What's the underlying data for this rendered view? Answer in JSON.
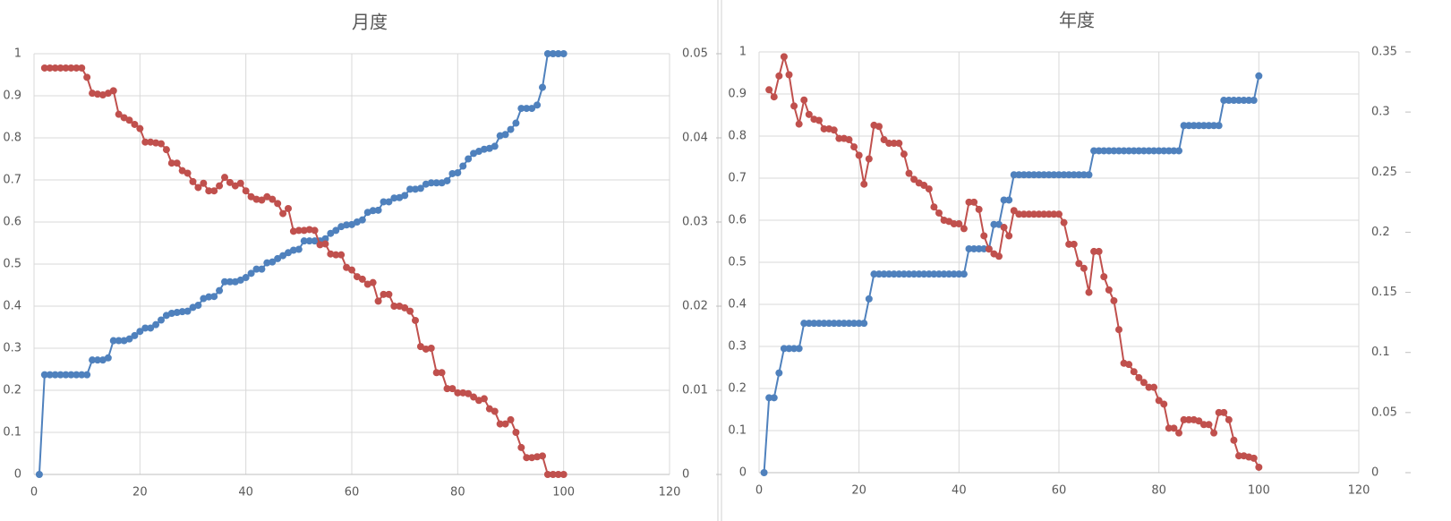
{
  "chart_data": [
    {
      "type": "line",
      "title": "月度",
      "x": [
        1,
        2,
        3,
        4,
        5,
        6,
        7,
        8,
        9,
        10,
        11,
        12,
        13,
        14,
        15,
        16,
        17,
        18,
        19,
        20,
        21,
        22,
        23,
        24,
        25,
        26,
        27,
        28,
        29,
        30,
        31,
        32,
        33,
        34,
        35,
        36,
        37,
        38,
        39,
        40,
        41,
        42,
        43,
        44,
        45,
        46,
        47,
        48,
        49,
        50,
        51,
        52,
        53,
        54,
        55,
        56,
        57,
        58,
        59,
        60,
        61,
        62,
        63,
        64,
        65,
        66,
        67,
        68,
        69,
        70,
        71,
        72,
        73,
        74,
        75,
        76,
        77,
        78,
        79,
        80,
        81,
        82,
        83,
        84,
        85,
        86,
        87,
        88,
        89,
        90,
        91,
        92,
        93,
        94,
        95,
        96,
        97,
        98,
        99,
        100
      ],
      "series": [
        {
          "color": "#4f81bd",
          "values": [
            0,
            0.237,
            0.237,
            0.237,
            0.237,
            0.237,
            0.237,
            0.237,
            0.237,
            0.237,
            0.272,
            0.272,
            0.272,
            0.277,
            0.318,
            0.318,
            0.318,
            0.322,
            0.33,
            0.34,
            0.348,
            0.348,
            0.356,
            0.367,
            0.378,
            0.383,
            0.385,
            0.387,
            0.388,
            0.397,
            0.402,
            0.418,
            0.422,
            0.423,
            0.437,
            0.458,
            0.458,
            0.458,
            0.462,
            0.468,
            0.478,
            0.488,
            0.488,
            0.503,
            0.505,
            0.513,
            0.52,
            0.527,
            0.533,
            0.535,
            0.555,
            0.555,
            0.555,
            0.555,
            0.56,
            0.573,
            0.58,
            0.589,
            0.593,
            0.594,
            0.6,
            0.605,
            0.623,
            0.627,
            0.628,
            0.648,
            0.648,
            0.657,
            0.658,
            0.663,
            0.678,
            0.678,
            0.68,
            0.69,
            0.693,
            0.693,
            0.693,
            0.698,
            0.715,
            0.717,
            0.733,
            0.75,
            0.763,
            0.768,
            0.773,
            0.775,
            0.78,
            0.805,
            0.808,
            0.82,
            0.835,
            0.87,
            0.87,
            0.87,
            0.878,
            0.92,
            1,
            1,
            1,
            1
          ]
        },
        {
          "color": "#c0504d",
          "axis": "y2",
          "values": [
            null,
            0.0483,
            0.0483,
            0.0483,
            0.0483,
            0.0483,
            0.0483,
            0.0483,
            0.0483,
            0.0472,
            0.0453,
            0.0452,
            0.0451,
            0.0453,
            0.0456,
            0.0428,
            0.0424,
            0.0421,
            0.0416,
            0.0411,
            0.0395,
            0.0395,
            0.0394,
            0.0393,
            0.0386,
            0.037,
            0.037,
            0.0361,
            0.0358,
            0.0348,
            0.0341,
            0.0346,
            0.0337,
            0.0337,
            0.0343,
            0.0353,
            0.0347,
            0.0343,
            0.0346,
            0.0337,
            0.033,
            0.0327,
            0.0326,
            0.033,
            0.0327,
            0.0322,
            0.031,
            0.0316,
            0.0289,
            0.029,
            0.029,
            0.0291,
            0.029,
            0.0273,
            0.0274,
            0.0262,
            0.0261,
            0.0261,
            0.0246,
            0.0243,
            0.0235,
            0.0232,
            0.0226,
            0.0228,
            0.0206,
            0.0214,
            0.0214,
            0.02,
            0.02,
            0.0198,
            0.0194,
            0.0183,
            0.0152,
            0.0149,
            0.015,
            0.0121,
            0.0121,
            0.0102,
            0.0102,
            0.0097,
            0.0097,
            0.0096,
            0.0092,
            0.0088,
            0.009,
            0.0078,
            0.0075,
            0.006,
            0.006,
            0.0065,
            0.005,
            0.0032,
            0.002,
            0.002,
            0.0021,
            0.0022,
            0,
            0,
            0,
            0
          ]
        }
      ],
      "xlim": [
        0,
        120
      ],
      "xticks": [
        0,
        20,
        40,
        60,
        80,
        100,
        120
      ],
      "ylim": [
        0,
        1
      ],
      "yticks": [
        0,
        0.1,
        0.2,
        0.3,
        0.4,
        0.5,
        0.6,
        0.7,
        0.8,
        0.9,
        1
      ],
      "y2lim": [
        0,
        0.05
      ],
      "y2ticks": [
        0,
        0.01,
        0.02,
        0.03,
        0.04,
        0.05
      ],
      "grid": true
    },
    {
      "type": "line",
      "title": "年度",
      "x": [
        1,
        2,
        3,
        4,
        5,
        6,
        7,
        8,
        9,
        10,
        11,
        12,
        13,
        14,
        15,
        16,
        17,
        18,
        19,
        20,
        21,
        22,
        23,
        24,
        25,
        26,
        27,
        28,
        29,
        30,
        31,
        32,
        33,
        34,
        35,
        36,
        37,
        38,
        39,
        40,
        41,
        42,
        43,
        44,
        45,
        46,
        47,
        48,
        49,
        50,
        51,
        52,
        53,
        54,
        55,
        56,
        57,
        58,
        59,
        60,
        61,
        62,
        63,
        64,
        65,
        66,
        67,
        68,
        69,
        70,
        71,
        72,
        73,
        74,
        75,
        76,
        77,
        78,
        79,
        80,
        81,
        82,
        83,
        84,
        85,
        86,
        87,
        88,
        89,
        90,
        91,
        92,
        93,
        94,
        95,
        96,
        97,
        98,
        99,
        100
      ],
      "series": [
        {
          "color": "#4f81bd",
          "values": [
            0,
            0.178,
            0.178,
            0.237,
            0.295,
            0.295,
            0.295,
            0.295,
            0.355,
            0.355,
            0.355,
            0.355,
            0.355,
            0.355,
            0.355,
            0.355,
            0.355,
            0.355,
            0.355,
            0.355,
            0.355,
            0.413,
            0.472,
            0.472,
            0.472,
            0.472,
            0.472,
            0.472,
            0.472,
            0.472,
            0.472,
            0.472,
            0.472,
            0.472,
            0.472,
            0.472,
            0.472,
            0.472,
            0.472,
            0.472,
            0.472,
            0.532,
            0.532,
            0.532,
            0.532,
            0.532,
            0.59,
            0.59,
            0.648,
            0.648,
            0.708,
            0.708,
            0.708,
            0.708,
            0.708,
            0.708,
            0.708,
            0.708,
            0.708,
            0.708,
            0.708,
            0.708,
            0.708,
            0.708,
            0.708,
            0.708,
            0.765,
            0.765,
            0.765,
            0.765,
            0.765,
            0.765,
            0.765,
            0.765,
            0.765,
            0.765,
            0.765,
            0.765,
            0.765,
            0.765,
            0.765,
            0.765,
            0.765,
            0.765,
            0.825,
            0.825,
            0.825,
            0.825,
            0.825,
            0.825,
            0.825,
            0.825,
            0.885,
            0.885,
            0.885,
            0.885,
            0.885,
            0.885,
            0.885,
            0.943
          ]
        },
        {
          "color": "#c0504d",
          "axis": "y2",
          "values": [
            null,
            0.3185,
            0.3126,
            0.33,
            0.346,
            0.331,
            0.305,
            0.29,
            0.31,
            0.298,
            0.294,
            0.293,
            0.286,
            0.286,
            0.285,
            0.278,
            0.278,
            0.277,
            0.271,
            0.264,
            0.24,
            0.261,
            0.289,
            0.288,
            0.277,
            0.274,
            0.274,
            0.274,
            0.265,
            0.249,
            0.244,
            0.241,
            0.239,
            0.236,
            0.221,
            0.216,
            0.21,
            0.209,
            0.207,
            0.207,
            0.203,
            0.225,
            0.225,
            0.219,
            0.197,
            0.186,
            0.182,
            0.18,
            0.204,
            0.197,
            0.218,
            0.215,
            0.215,
            0.215,
            0.215,
            0.215,
            0.215,
            0.215,
            0.215,
            0.215,
            0.208,
            0.19,
            0.19,
            0.174,
            0.17,
            0.15,
            0.184,
            0.184,
            0.163,
            0.152,
            0.143,
            0.119,
            0.091,
            0.09,
            0.084,
            0.079,
            0.075,
            0.071,
            0.071,
            0.06,
            0.057,
            0.037,
            0.037,
            0.033,
            0.044,
            0.044,
            0.044,
            0.043,
            0.04,
            0.04,
            0.033,
            0.05,
            0.05,
            0.044,
            0.027,
            0.014,
            0.014,
            0.013,
            0.012,
            0.0045
          ]
        }
      ],
      "xlim": [
        0,
        120
      ],
      "xticks": [
        0,
        20,
        40,
        60,
        80,
        100,
        120
      ],
      "ylim": [
        0,
        1
      ],
      "yticks": [
        0,
        0.1,
        0.2,
        0.3,
        0.4,
        0.5,
        0.6,
        0.7,
        0.8,
        0.9,
        1
      ],
      "y2lim": [
        0,
        0.35
      ],
      "y2ticks": [
        0,
        0.05,
        0.1,
        0.15,
        0.2,
        0.25,
        0.3,
        0.35
      ],
      "grid": true
    }
  ]
}
